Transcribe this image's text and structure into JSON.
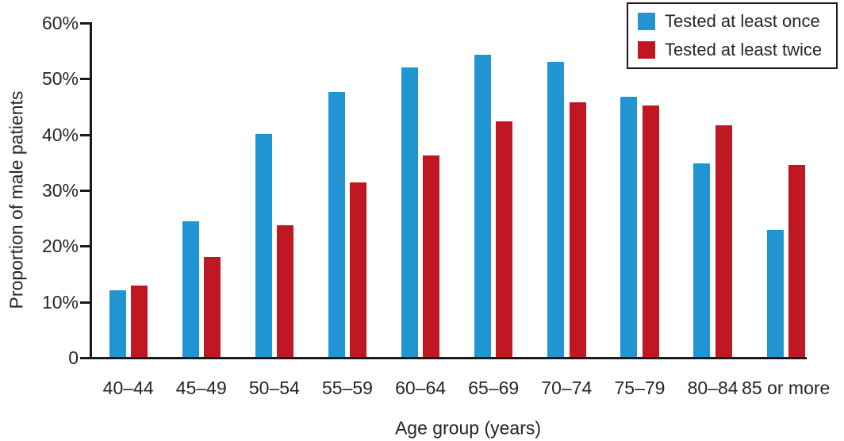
{
  "chart_data": {
    "type": "bar",
    "title": "",
    "categories": [
      "40–44",
      "45–49",
      "50–54",
      "55–59",
      "60–64",
      "65–69",
      "70–74",
      "75–79",
      "80–84",
      "85 or more"
    ],
    "series": [
      {
        "name": "Tested at least once",
        "color": "#2095d2",
        "values": [
          12.1,
          24.5,
          40.1,
          47.6,
          52.0,
          54.3,
          53.0,
          46.8,
          34.8,
          22.9
        ]
      },
      {
        "name": "Tested at least twice",
        "color": "#c01823",
        "values": [
          12.9,
          18.0,
          23.7,
          31.4,
          36.2,
          42.4,
          45.8,
          45.2,
          41.7,
          34.5
        ]
      }
    ],
    "xlabel": "Age group (years)",
    "ylabel": "Proportion of male patients",
    "ylim": [
      0,
      60
    ],
    "yticks": [
      0,
      10,
      20,
      30,
      40,
      50,
      60
    ],
    "ytick_labels": [
      "0",
      "10%",
      "20%",
      "30%",
      "40%",
      "50%",
      "60%"
    ],
    "grid": false,
    "legend_position": "top-right",
    "axis_color": "#1a1a1a",
    "text_color": "#262626"
  }
}
